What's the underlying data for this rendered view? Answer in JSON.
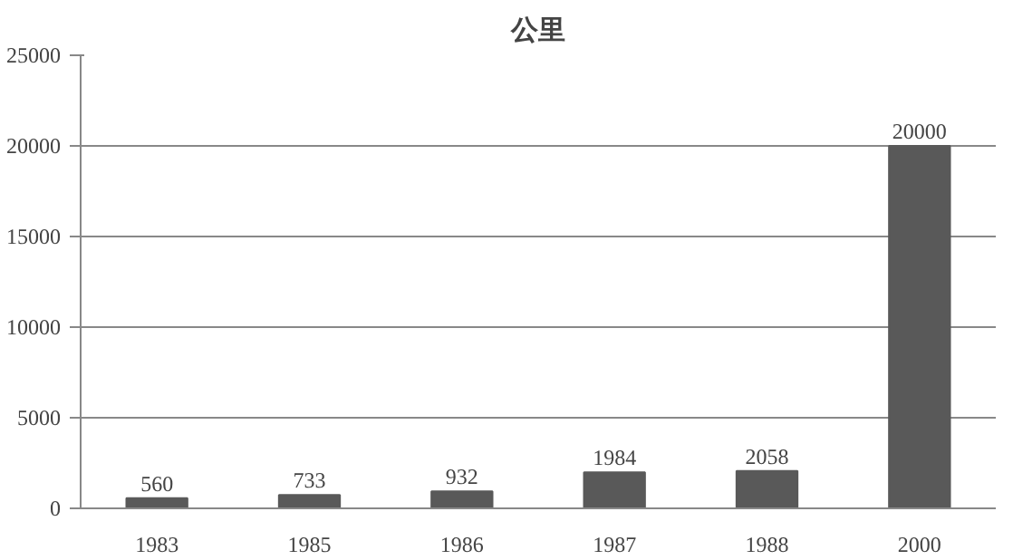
{
  "chart_data": {
    "type": "bar",
    "title": "公里",
    "categories": [
      "1983",
      "1985",
      "1986",
      "1987",
      "1988",
      "2000"
    ],
    "values": [
      560,
      733,
      932,
      1984,
      2058,
      20000
    ],
    "color": "#595959",
    "ylim": [
      0,
      25000
    ],
    "yticks": [
      0,
      5000,
      10000,
      15000,
      20000,
      25000
    ],
    "grid": "y",
    "data_labels": true
  }
}
